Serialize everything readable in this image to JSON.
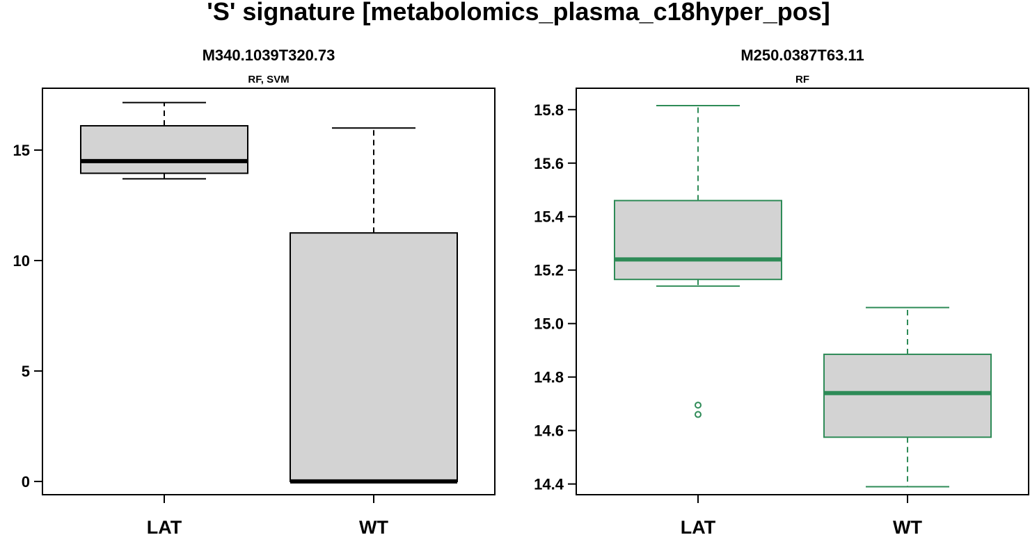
{
  "figure": {
    "title": "'S' signature [metabolomics_plasma_c18hyper_pos]"
  },
  "chart_data": [
    {
      "type": "box",
      "title": "M340.1039T320.73",
      "subtitle": "RF, SVM",
      "color": "#000000",
      "fill": "#d3d3d3",
      "ylim": [
        -0.6,
        17.8
      ],
      "yticks": [
        0,
        5,
        10,
        15
      ],
      "ytick_labels": [
        "0",
        "5",
        "10",
        "15"
      ],
      "categories": [
        "LAT",
        "WT"
      ],
      "boxes": [
        {
          "name": "LAT",
          "whisker_low": 13.7,
          "q1": 13.95,
          "median": 14.5,
          "q3": 16.1,
          "whisker_high": 17.15,
          "outliers": []
        },
        {
          "name": "WT",
          "whisker_low": 0.0,
          "q1": 0.0,
          "median": 0.0,
          "q3": 11.25,
          "whisker_high": 16.0,
          "outliers": []
        }
      ]
    },
    {
      "type": "box",
      "title": "M250.0387T63.11",
      "subtitle": "RF",
      "color": "#2e8b57",
      "fill": "#d3d3d3",
      "ylim": [
        14.36,
        15.88
      ],
      "yticks": [
        14.4,
        14.6,
        14.8,
        15.0,
        15.2,
        15.4,
        15.6,
        15.8
      ],
      "ytick_labels": [
        "14.4",
        "14.6",
        "14.8",
        "15.0",
        "15.2",
        "15.4",
        "15.6",
        "15.8"
      ],
      "categories": [
        "LAT",
        "WT"
      ],
      "boxes": [
        {
          "name": "LAT",
          "whisker_low": 15.14,
          "q1": 15.165,
          "median": 15.24,
          "q3": 15.46,
          "whisker_high": 15.815,
          "outliers": [
            14.695,
            14.66
          ]
        },
        {
          "name": "WT",
          "whisker_low": 14.39,
          "q1": 14.575,
          "median": 14.74,
          "q3": 14.885,
          "whisker_high": 15.06,
          "outliers": []
        }
      ]
    }
  ]
}
